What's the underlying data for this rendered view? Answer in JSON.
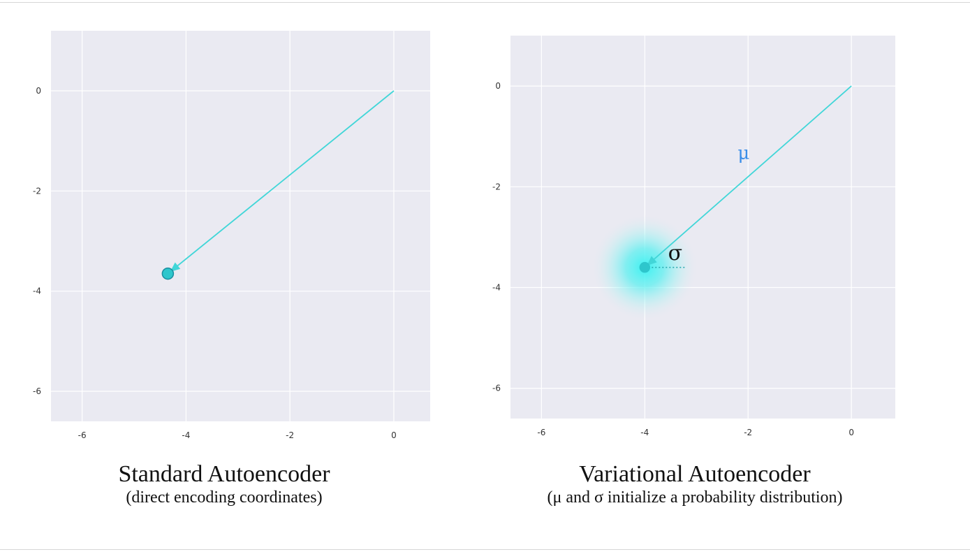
{
  "colors": {
    "plot_bg": "#eaeaf2",
    "grid": "#ffffff",
    "vector": "#41d6d8",
    "point_fill": "#2ec6cc",
    "point_edge": "#1a8ea0",
    "mu_text": "#3b8ee8",
    "sigma_text": "#111111",
    "glow": "#3ff2f2"
  },
  "chart_data": [
    {
      "type": "scatter",
      "title": "",
      "xlabel": "",
      "ylabel": "",
      "xlim": [
        -6.6,
        0.7
      ],
      "ylim": [
        -6.6,
        1.2
      ],
      "grid": true,
      "x_ticks": [
        -6,
        -4,
        -2,
        0
      ],
      "x_tick_labels": [
        "-6",
        "-4",
        "-2",
        "0"
      ],
      "y_ticks": [
        0,
        -2,
        -4,
        -6
      ],
      "y_tick_labels": [
        "0",
        "-2",
        "-4",
        "-6"
      ],
      "series": [
        {
          "points": [
            {
              "x": -4.35,
              "y": -3.65
            }
          ]
        }
      ],
      "arrows": [
        {
          "from": [
            0,
            0
          ],
          "to": [
            -4.35,
            -3.65
          ]
        }
      ]
    },
    {
      "type": "scatter",
      "title": "",
      "xlabel": "",
      "ylabel": "",
      "xlim": [
        -6.6,
        0.85
      ],
      "ylim": [
        -6.6,
        1.0
      ],
      "grid": true,
      "x_ticks": [
        -6,
        -4,
        -2,
        0
      ],
      "x_tick_labels": [
        "-6",
        "-4",
        "-2",
        "0"
      ],
      "y_ticks": [
        0,
        -2,
        -4,
        -6
      ],
      "y_tick_labels": [
        "0",
        "-2",
        "-4",
        "-6"
      ],
      "series": [
        {
          "points": [
            {
              "x": -4.0,
              "y": -3.6
            }
          ]
        }
      ],
      "arrows": [
        {
          "from": [
            0,
            0
          ],
          "to": [
            -4.0,
            -3.6
          ]
        }
      ],
      "distribution": {
        "center": [
          -4.0,
          -3.6
        ],
        "sigma": 0.8
      },
      "annotations": [
        {
          "text": "μ",
          "role": "mean"
        },
        {
          "text": "σ",
          "role": "std"
        }
      ]
    }
  ],
  "captions": {
    "left": {
      "title": "Standard Autoencoder",
      "subtitle": "(direct encoding coordinates)"
    },
    "right": {
      "title": "Variational Autoencoder",
      "subtitle": "(μ and σ initialize a probability distribution)"
    }
  }
}
